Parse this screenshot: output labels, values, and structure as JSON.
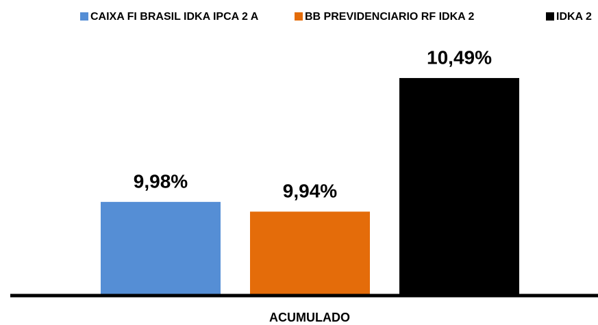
{
  "chart_data": {
    "type": "bar",
    "categories": [
      "ACUMULADO"
    ],
    "series": [
      {
        "name": "CAIXA FI BRASIL IDKA IPCA 2 A",
        "color": "#558ed5",
        "values": [
          9.98
        ],
        "value_labels": [
          "9,98%"
        ]
      },
      {
        "name": "BB PREVIDENCIARIO RF IDKA 2",
        "color": "#e46c0a",
        "values": [
          9.94
        ],
        "value_labels": [
          "9,94%"
        ]
      },
      {
        "name": "IDKA 2",
        "color": "#000000",
        "values": [
          10.49
        ],
        "value_labels": [
          "10,49%"
        ]
      }
    ],
    "ylim": [
      9.6,
      10.6
    ],
    "legend": "top"
  }
}
